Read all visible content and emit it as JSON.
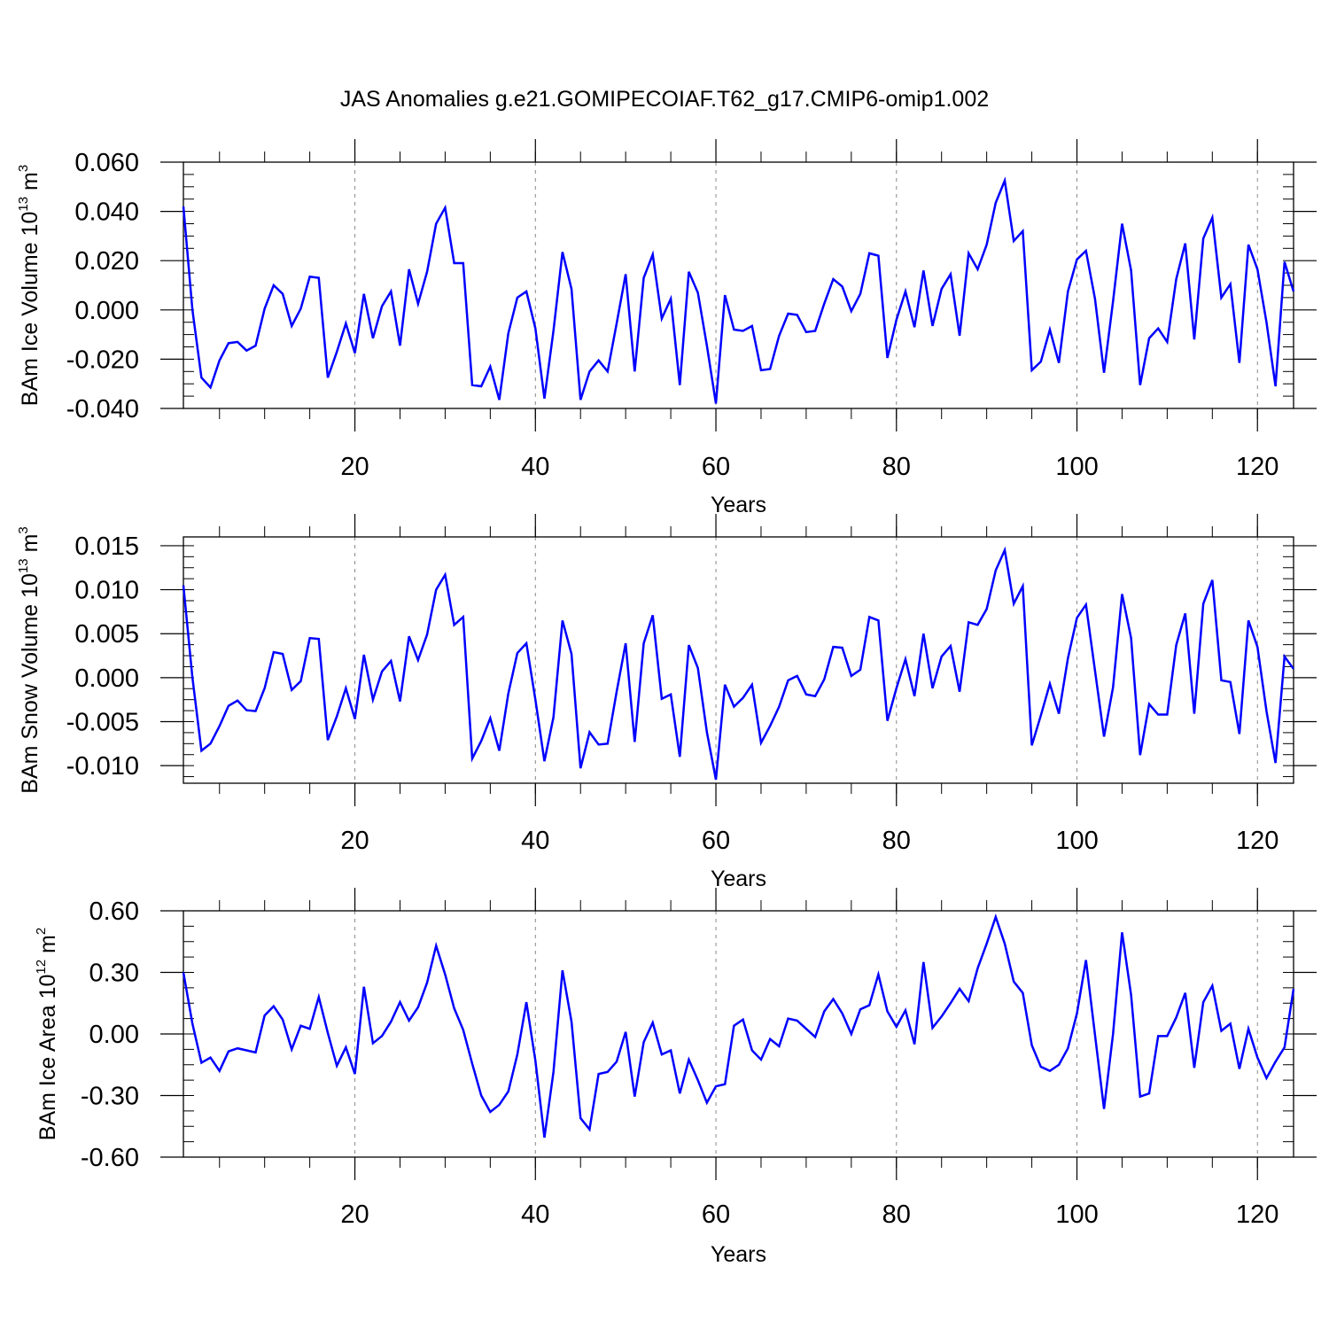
{
  "title": "JAS Anomalies g.e21.GOMIPECOIAF.T62_g17.CMIP6-omip1.002",
  "line_color": "#0000ff",
  "chart_data": [
    {
      "type": "line",
      "ylabel_main": "BAm Ice Volume 10",
      "ylabel_exp": "13",
      "ylabel_unit": " m",
      "ylabel_unit_exp": "3",
      "xlabel": "Years",
      "xlim": [
        1,
        124
      ],
      "ylim": [
        -0.04,
        0.06
      ],
      "yticks": [
        -0.04,
        -0.02,
        0.0,
        0.02,
        0.04,
        0.06
      ],
      "ytick_labels": [
        "-0.040",
        "-0.020",
        "0.000",
        "0.020",
        "0.040",
        "0.060"
      ],
      "xticks": [
        20,
        40,
        60,
        80,
        100,
        120
      ],
      "xtick_labels": [
        "20",
        "40",
        "60",
        "80",
        "100",
        "120"
      ],
      "x_start": 1,
      "values": [
        0.042,
        0.0,
        -0.0275,
        -0.0315,
        -0.0205,
        -0.0135,
        -0.013,
        -0.0165,
        -0.0145,
        0.0005,
        0.01,
        0.0065,
        -0.0065,
        0.0005,
        0.0135,
        0.013,
        -0.0275,
        -0.017,
        -0.0055,
        -0.0175,
        0.0065,
        -0.0115,
        0.0015,
        0.0075,
        -0.0145,
        0.0165,
        0.0025,
        0.0155,
        0.035,
        0.0415,
        0.019,
        0.019,
        -0.0305,
        -0.031,
        -0.023,
        -0.0365,
        -0.0095,
        0.005,
        0.0075,
        -0.0075,
        -0.036,
        -0.0085,
        0.0235,
        0.0085,
        -0.0365,
        -0.025,
        -0.0205,
        -0.025,
        -0.0055,
        0.0145,
        -0.025,
        0.013,
        0.0225,
        -0.0035,
        0.0045,
        -0.0305,
        0.0155,
        0.007,
        -0.0145,
        -0.038,
        0.006,
        -0.008,
        -0.0085,
        -0.0065,
        -0.0245,
        -0.024,
        -0.0105,
        -0.0015,
        -0.002,
        -0.009,
        -0.0085,
        0.0025,
        0.0125,
        0.0095,
        -0.0005,
        0.0065,
        0.023,
        0.022,
        -0.0195,
        -0.004,
        0.0075,
        -0.007,
        0.016,
        -0.0065,
        0.0085,
        0.0145,
        -0.0105,
        0.023,
        0.0165,
        0.0265,
        0.0435,
        0.0525,
        0.028,
        0.032,
        -0.0245,
        -0.021,
        -0.008,
        -0.0215,
        0.0075,
        0.0205,
        0.024,
        0.0045,
        -0.0255,
        0.0035,
        0.035,
        0.016,
        -0.0305,
        -0.0115,
        -0.0075,
        -0.013,
        0.0125,
        0.027,
        -0.012,
        0.029,
        0.0375,
        0.005,
        0.0105,
        -0.0215,
        0.0265,
        0.0165,
        -0.005,
        -0.031,
        0.0195,
        0.0075
      ]
    },
    {
      "type": "line",
      "ylabel_main": "BAm Snow Volume 10",
      "ylabel_exp": "13",
      "ylabel_unit": " m",
      "ylabel_unit_exp": "3",
      "xlabel": "Years",
      "xlim": [
        1,
        124
      ],
      "ylim": [
        -0.012,
        0.016
      ],
      "yticks": [
        -0.01,
        -0.005,
        0.0,
        0.005,
        0.01,
        0.015
      ],
      "ytick_labels": [
        "-0.010",
        "-0.005",
        "0.000",
        "0.005",
        "0.010",
        "0.015"
      ],
      "xticks": [
        20,
        40,
        60,
        80,
        100,
        120
      ],
      "xtick_labels": [
        "20",
        "40",
        "60",
        "80",
        "100",
        "120"
      ],
      "x_start": 1,
      "values": [
        0.0105,
        0.0,
        -0.0083,
        -0.0075,
        -0.0055,
        -0.0032,
        -0.0026,
        -0.0037,
        -0.0038,
        -0.0012,
        0.0029,
        0.0027,
        -0.0014,
        -0.0004,
        0.0045,
        0.0044,
        -0.0071,
        -0.0044,
        -0.0012,
        -0.0047,
        0.0026,
        -0.0025,
        0.0007,
        0.0019,
        -0.0027,
        0.0047,
        0.002,
        0.0049,
        0.01,
        0.0117,
        0.006,
        0.0069,
        -0.0092,
        -0.0072,
        -0.0046,
        -0.0083,
        -0.0018,
        0.0028,
        0.0039,
        -0.0025,
        -0.0095,
        -0.0045,
        0.0065,
        0.0027,
        -0.0103,
        -0.0062,
        -0.0076,
        -0.0075,
        -0.0016,
        0.0039,
        -0.0073,
        0.0039,
        0.0071,
        -0.0024,
        -0.0019,
        -0.009,
        0.0037,
        0.0011,
        -0.0062,
        -0.0116,
        -0.0008,
        -0.0033,
        -0.0023,
        -0.0008,
        -0.0074,
        -0.0055,
        -0.0033,
        -0.0003,
        0.0002,
        -0.0019,
        -0.0021,
        -0.0002,
        0.0035,
        0.0034,
        0.0002,
        0.0009,
        0.0069,
        0.0065,
        -0.0049,
        -0.0012,
        0.0021,
        -0.0021,
        0.005,
        -0.0012,
        0.0024,
        0.0036,
        -0.0016,
        0.0063,
        0.006,
        0.0078,
        0.0122,
        0.0145,
        0.0084,
        0.0104,
        -0.0077,
        -0.0043,
        -0.0007,
        -0.0041,
        0.0022,
        0.0068,
        0.0083,
        0.0008,
        -0.0067,
        -0.0011,
        0.0095,
        0.0045,
        -0.0088,
        -0.003,
        -0.0042,
        -0.0042,
        0.0037,
        0.0073,
        -0.0041,
        0.0084,
        0.0111,
        -0.0003,
        -0.0005,
        -0.0064,
        0.0065,
        0.0035,
        -0.0038,
        -0.0097,
        0.0024,
        0.001
      ]
    },
    {
      "type": "line",
      "ylabel_main": "BAm Ice Area 10",
      "ylabel_exp": "12",
      "ylabel_unit": " m",
      "ylabel_unit_exp": "2",
      "xlabel": "Years",
      "xlim": [
        1,
        124
      ],
      "ylim": [
        -0.6,
        0.6
      ],
      "yticks": [
        -0.6,
        -0.3,
        0.0,
        0.3,
        0.6
      ],
      "ytick_labels": [
        "-0.60",
        "-0.30",
        "0.00",
        "0.30",
        "0.60"
      ],
      "xticks": [
        20,
        40,
        60,
        80,
        100,
        120
      ],
      "xtick_labels": [
        "20",
        "40",
        "60",
        "80",
        "100",
        "120"
      ],
      "x_start": 1,
      "values": [
        0.3,
        0.05,
        -0.14,
        -0.115,
        -0.18,
        -0.085,
        -0.07,
        -0.08,
        -0.09,
        0.09,
        0.135,
        0.07,
        -0.075,
        0.04,
        0.025,
        0.18,
        0.005,
        -0.155,
        -0.065,
        -0.195,
        0.23,
        -0.045,
        -0.01,
        0.06,
        0.155,
        0.065,
        0.13,
        0.25,
        0.43,
        0.29,
        0.125,
        0.02,
        -0.145,
        -0.3,
        -0.38,
        -0.345,
        -0.28,
        -0.1,
        0.155,
        -0.13,
        -0.505,
        -0.185,
        0.31,
        0.06,
        -0.41,
        -0.465,
        -0.195,
        -0.185,
        -0.135,
        0.01,
        -0.305,
        -0.04,
        0.055,
        -0.1,
        -0.08,
        -0.29,
        -0.125,
        -0.225,
        -0.335,
        -0.255,
        -0.245,
        0.04,
        0.07,
        -0.08,
        -0.125,
        -0.025,
        -0.06,
        0.075,
        0.065,
        0.025,
        -0.015,
        0.11,
        0.17,
        0.1,
        0.0,
        0.12,
        0.14,
        0.29,
        0.11,
        0.035,
        0.115,
        -0.05,
        0.35,
        0.03,
        0.085,
        0.15,
        0.22,
        0.16,
        0.32,
        0.44,
        0.57,
        0.44,
        0.255,
        0.2,
        -0.055,
        -0.16,
        -0.18,
        -0.15,
        -0.07,
        0.1,
        0.36,
        -0.005,
        -0.365,
        0.0,
        0.495,
        0.19,
        -0.305,
        -0.29,
        -0.01,
        -0.01,
        0.08,
        0.2,
        -0.165,
        0.155,
        0.235,
        0.015,
        0.05,
        -0.17,
        0.025,
        -0.115,
        -0.215,
        -0.135,
        -0.065,
        0.22
      ]
    }
  ]
}
